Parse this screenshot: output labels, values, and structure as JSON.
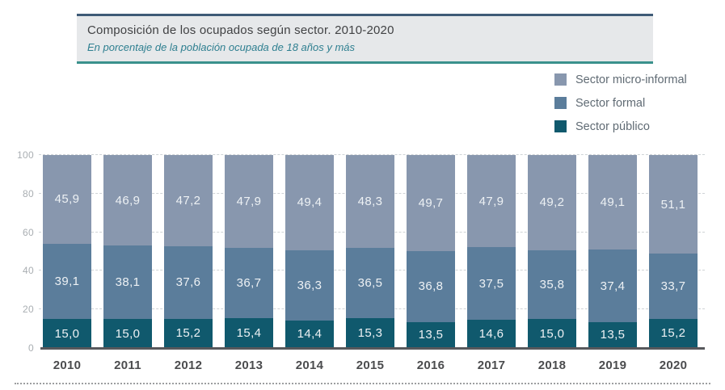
{
  "header": {
    "title": "Composición de los ocupados según sector. 2010-2020",
    "subtitle": "En porcentaje de la población ocupada de 18 años y más"
  },
  "legend": {
    "position": "top-right",
    "items": [
      {
        "label": "Sector micro-informal",
        "color": "#8897AE"
      },
      {
        "label": "Sector formal",
        "color": "#5B7D9B"
      },
      {
        "label": "Sector público",
        "color": "#10596D"
      }
    ]
  },
  "chart_data": {
    "type": "bar",
    "stacked": true,
    "title": "Composición de los ocupados según sector. 2010-2020",
    "subtitle": "En porcentaje de la población ocupada de 18 años y más",
    "categories": [
      "2010",
      "2011",
      "2012",
      "2013",
      "2014",
      "2015",
      "2016",
      "2017",
      "2018",
      "2019",
      "2020"
    ],
    "stack_order": "top-to-bottom",
    "series": [
      {
        "name": "Sector micro-informal",
        "color": "#8897AE",
        "values": [
          45.9,
          46.9,
          47.2,
          47.9,
          49.4,
          48.3,
          49.7,
          47.9,
          49.2,
          49.1,
          51.1
        ],
        "display": [
          "45,9",
          "46,9",
          "47,2",
          "47,9",
          "49,4",
          "48,3",
          "49,7",
          "47,9",
          "49,2",
          "49,1",
          "51,1"
        ]
      },
      {
        "name": "Sector formal",
        "color": "#5B7D9B",
        "values": [
          39.1,
          38.1,
          37.6,
          36.7,
          36.3,
          36.5,
          36.8,
          37.5,
          35.8,
          37.4,
          33.7
        ],
        "display": [
          "39,1",
          "38,1",
          "37,6",
          "36,7",
          "36,3",
          "36,5",
          "36,8",
          "37,5",
          "35,8",
          "37,4",
          "33,7"
        ]
      },
      {
        "name": "Sector público",
        "color": "#10596D",
        "values": [
          15.0,
          15.0,
          15.2,
          15.4,
          14.4,
          15.3,
          13.5,
          14.6,
          15.0,
          13.5,
          15.2
        ],
        "display": [
          "15,0",
          "15,0",
          "15,2",
          "15,4",
          "14,4",
          "15,3",
          "13,5",
          "14,6",
          "15,0",
          "13,5",
          "15,2"
        ]
      }
    ],
    "xlabel": "",
    "ylabel": "",
    "ylim": [
      0,
      100
    ],
    "yticks": [
      0,
      20,
      40,
      60,
      80,
      100
    ],
    "grid": "horizontal-dashed",
    "legend_position": "top-right",
    "value_decimal_separator": ","
  }
}
